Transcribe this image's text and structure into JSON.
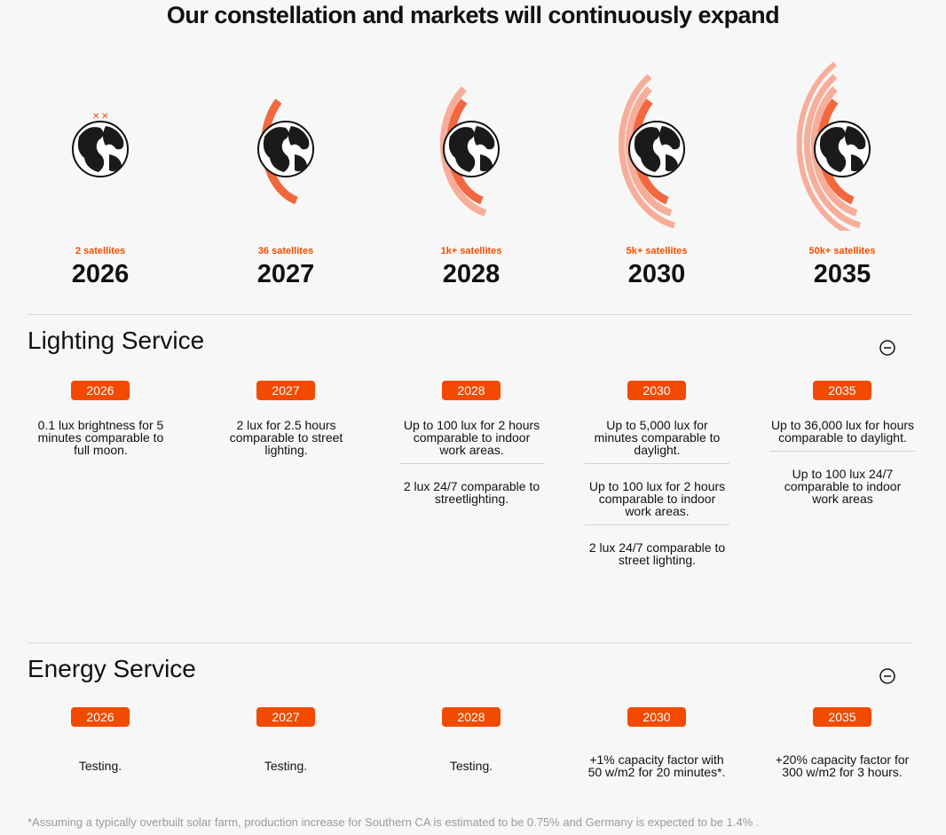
{
  "header": {
    "title": "Our constellation and markets will continuously expand"
  },
  "milestones": [
    {
      "satellites": "2 satellites",
      "year": "2026"
    },
    {
      "satellites": "36 satellites",
      "year": "2027"
    },
    {
      "satellites": "1k+ satellites",
      "year": "2028"
    },
    {
      "satellites": "5k+ satellites",
      "year": "2030"
    },
    {
      "satellites": "50k+ satellites",
      "year": "2035"
    }
  ],
  "lighting": {
    "title": "Lighting Service",
    "columns": [
      {
        "year": "2026",
        "items": [
          "0.1 lux brightness for 5 minutes comparable to full moon."
        ]
      },
      {
        "year": "2027",
        "items": [
          "2 lux for 2.5 hours comparable to street lighting."
        ]
      },
      {
        "year": "2028",
        "items": [
          "Up to 100 lux for 2 hours comparable to indoor work areas.",
          "2 lux 24/7 comparable to streetlighting."
        ]
      },
      {
        "year": "2030",
        "items": [
          "Up to 5,000 lux for minutes comparable to daylight.",
          "Up to 100 lux for 2 hours comparable to indoor work areas.",
          "2 lux 24/7 comparable to street lighting."
        ]
      },
      {
        "year": "2035",
        "items": [
          "Up to 36,000 lux for hours comparable to daylight.",
          "Up to 100 lux 24/7 comparable to indoor work areas"
        ]
      }
    ]
  },
  "energy": {
    "title": "Energy Service",
    "columns": [
      {
        "year": "2026",
        "items": [
          "Testing."
        ]
      },
      {
        "year": "2027",
        "items": [
          "Testing."
        ]
      },
      {
        "year": "2028",
        "items": [
          "Testing."
        ]
      },
      {
        "year": "2030",
        "items": [
          "+1% capacity factor with 50 w/m2 for 20 minutes*."
        ]
      },
      {
        "year": "2035",
        "items": [
          "+20% capacity factor for 300 w/m2 for 3 hours."
        ]
      }
    ]
  },
  "footnote": "*Assuming a typically overbuilt solar farm, production increase for Southern CA is estimated to be 0.75% and Germany is expected to be 1.4% ."
}
